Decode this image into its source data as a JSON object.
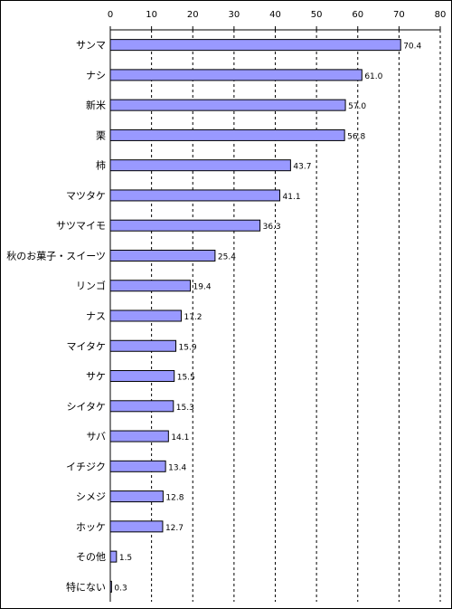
{
  "chart_data": {
    "type": "bar",
    "orientation": "horizontal",
    "title": "",
    "xlabel": "",
    "ylabel": "",
    "xlim": [
      0,
      80
    ],
    "x_ticks": [
      "0",
      "10",
      "20",
      "30",
      "40",
      "50",
      "60",
      "70",
      "80"
    ],
    "x_axis_position": "top",
    "grid": "vertical dashed",
    "bar_color": "#9999ff",
    "bar_border_color": "#000000",
    "categories": [
      "サンマ",
      "ナシ",
      "新米",
      "栗",
      "柿",
      "マツタケ",
      "サツマイモ",
      "秋のお菓子・スイーツ",
      "リンゴ",
      "ナス",
      "マイタケ",
      "サケ",
      "シイタケ",
      "サバ",
      "イチジク",
      "シメジ",
      "ホッケ",
      "その他",
      "特にない"
    ],
    "values": [
      70.4,
      61.0,
      57.0,
      56.8,
      43.7,
      41.1,
      36.3,
      25.4,
      19.4,
      17.2,
      15.9,
      15.5,
      15.3,
      14.1,
      13.4,
      12.8,
      12.7,
      1.5,
      0.3
    ],
    "value_labels": [
      "70.4",
      "61.0",
      "57.0",
      "56.8",
      "43.7",
      "41.1",
      "36.3",
      "25.4",
      "19.4",
      "17.2",
      "15.9",
      "15.5",
      "15.3",
      "14.1",
      "13.4",
      "12.8",
      "12.7",
      "1.5",
      "0.3"
    ]
  }
}
